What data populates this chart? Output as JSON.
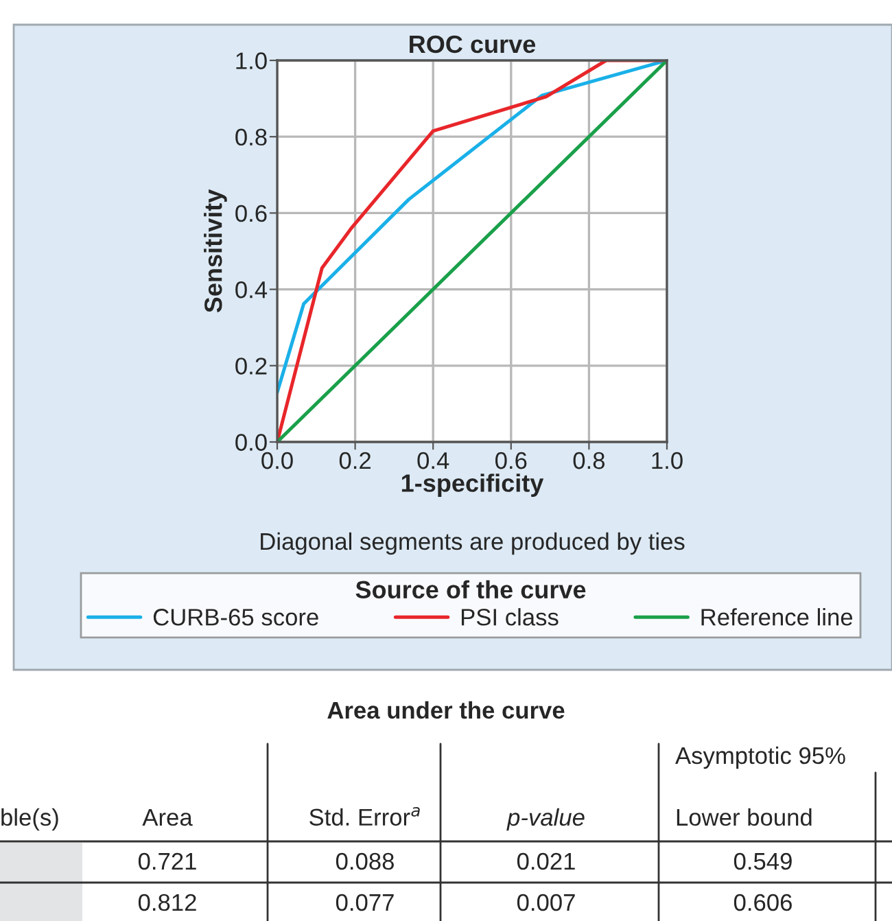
{
  "chart_data": [
    {
      "type": "line",
      "title": "ROC curve",
      "xlabel": "1-specificity",
      "ylabel": "Sensitivity",
      "legend_title": "Source of the curve",
      "annotations": [
        "Diagonal segments are produced by ties"
      ],
      "xlim": [
        0,
        1
      ],
      "ylim": [
        0,
        1
      ],
      "xticks": [
        {
          "value": 0,
          "label": "0.0"
        },
        0.2,
        0.4,
        0.6,
        0.8,
        {
          "value": 1,
          "label": "1.0"
        }
      ],
      "yticks": [
        {
          "value": 0,
          "label": "0.0"
        },
        0.2,
        0.4,
        0.6,
        0.8,
        {
          "value": 1,
          "label": "1.0"
        }
      ],
      "grid": true,
      "legend": "bottom",
      "series": [
        {
          "name": "CURB-65 score",
          "color": "#1ab0e8",
          "x": [
            0,
            0.068,
            0.338,
            0.679,
            1
          ],
          "values": [
            0.13,
            0.362,
            0.636,
            0.908,
            1
          ]
        },
        {
          "name": "PSI class",
          "color": "#e8262a",
          "x": [
            0,
            0.115,
            0.19,
            0.4,
            0.69,
            0.844,
            1
          ],
          "values": [
            0,
            0.456,
            0.56,
            0.815,
            0.905,
            1,
            1
          ]
        },
        {
          "name": "Reference line",
          "color": "#1aa04a",
          "x": [
            0,
            1
          ],
          "values": [
            0,
            1
          ]
        }
      ]
    },
    {
      "type": "other",
      "title": "Area under the curve",
      "annotations": [
        "Asymptotic 95%",
        "ble(s)",
        "Area",
        "Std. Error$^{a}$",
        "p-value",
        "Lower bound",
        "0.721",
        "0.088",
        "0.021",
        "0.549",
        "0.812",
        "0.077",
        "0.007",
        "0.606"
      ]
    }
  ]
}
